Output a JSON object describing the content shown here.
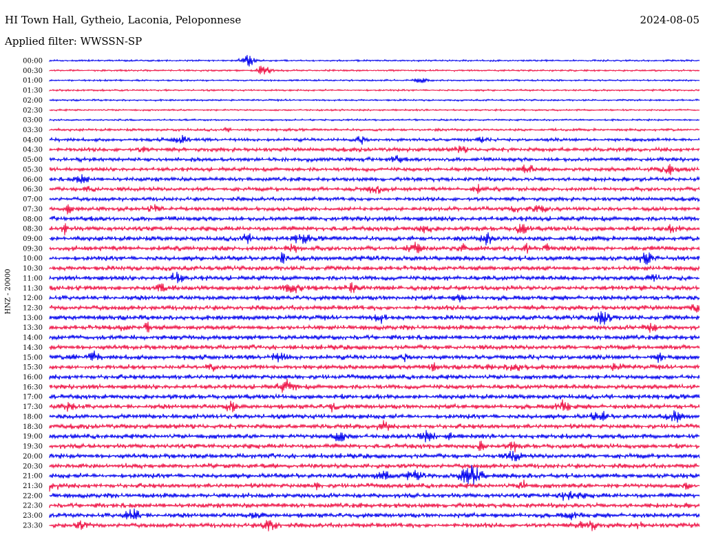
{
  "header": {
    "station": "HI Town Hall, Gytheio, Laconia, Peloponnese",
    "date": "2024-08-05",
    "filter": "Applied filter: WWSSN-SP"
  },
  "colors": {
    "even": "#0000ee",
    "odd": "#ee1144"
  },
  "chart_data": {
    "type": "line",
    "title": "HI Town Hall, Gytheio, Laconia, Peloponnese",
    "ylabel": "HNZ - 20000",
    "rows": [
      "00:00",
      "00:30",
      "01:00",
      "01:30",
      "02:00",
      "02:30",
      "03:00",
      "03:30",
      "04:00",
      "04:30",
      "05:00",
      "05:30",
      "06:00",
      "06:30",
      "07:00",
      "07:30",
      "08:00",
      "08:30",
      "09:00",
      "09:30",
      "10:00",
      "10:30",
      "11:00",
      "11:30",
      "12:00",
      "12:30",
      "13:00",
      "13:30",
      "14:00",
      "14:30",
      "15:00",
      "15:30",
      "16:00",
      "16:30",
      "17:00",
      "17:30",
      "18:00",
      "18:30",
      "19:00",
      "19:30",
      "20:00",
      "20:30",
      "21:00",
      "21:30",
      "22:00",
      "22:30",
      "23:00",
      "23:30"
    ],
    "noise_level": [
      1,
      1,
      1,
      1,
      1,
      1,
      1,
      2,
      3,
      4,
      4,
      4,
      4,
      4,
      4,
      4,
      5,
      5,
      5,
      5,
      5,
      5,
      5,
      5,
      5,
      5,
      5,
      5,
      5,
      5,
      5,
      5,
      5,
      5,
      5,
      5,
      5,
      5,
      5,
      5,
      5,
      5,
      5,
      5,
      5,
      5,
      5,
      5
    ]
  }
}
